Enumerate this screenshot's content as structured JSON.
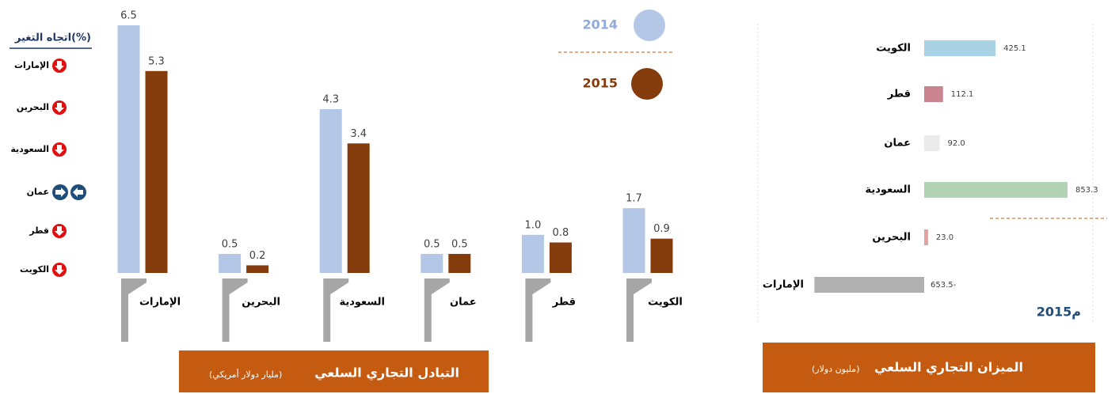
{
  "chart_data": [
    {
      "type": "bar",
      "title": "التبادل التجاري السلعي",
      "subtitle": "(مليار دولار أمريكي)",
      "categories": [
        "الإمارات",
        "البحرين",
        "السعودية",
        "عمان",
        "قطر",
        "الكويت"
      ],
      "series": [
        {
          "name": "2014",
          "color": "#b4c7e7",
          "values": [
            6.5,
            0.5,
            4.3,
            0.5,
            1.0,
            1.7
          ],
          "value_labels": [
            "6.5",
            "0.5",
            "4.3",
            "0.5",
            "1.0",
            "1.7"
          ]
        },
        {
          "name": "2015",
          "color": "#843c0c",
          "values": [
            5.3,
            0.2,
            3.4,
            0.5,
            0.8,
            0.9
          ],
          "value_labels": [
            "5.3",
            "0.2",
            "3.4",
            "0.5",
            "0.8",
            "0.9"
          ]
        }
      ]
    },
    {
      "type": "hbar",
      "title": "الميزان التجاري السلعي",
      "subtitle": "(مليون دولار)",
      "year_label": "2015م",
      "categories": [
        "الكويت",
        "قطر",
        "عمان",
        "السعودية",
        "البحرين",
        "الإمارات"
      ],
      "values": [
        425.1,
        112.1,
        92.0,
        853.3,
        23.0,
        -653.5
      ],
      "value_labels": [
        "425.1",
        "112.1",
        "92.0",
        "853.3",
        "23.0",
        "653.5-"
      ],
      "colors": [
        "#a9d3e5",
        "#c9848f",
        "#ebebeb",
        "#b3d4b3",
        "#e5a0a0",
        "#b0b0b0"
      ]
    }
  ],
  "trend": {
    "title": "اتجاه التغير(%)",
    "items": [
      {
        "label": "الإمارات",
        "direction": "down"
      },
      {
        "label": "البحرين",
        "direction": "down"
      },
      {
        "label": "السعودية",
        "direction": "down"
      },
      {
        "label": "عمان",
        "direction": "both"
      },
      {
        "label": "قطر",
        "direction": "down"
      },
      {
        "label": "الكويت",
        "direction": "down"
      }
    ]
  }
}
